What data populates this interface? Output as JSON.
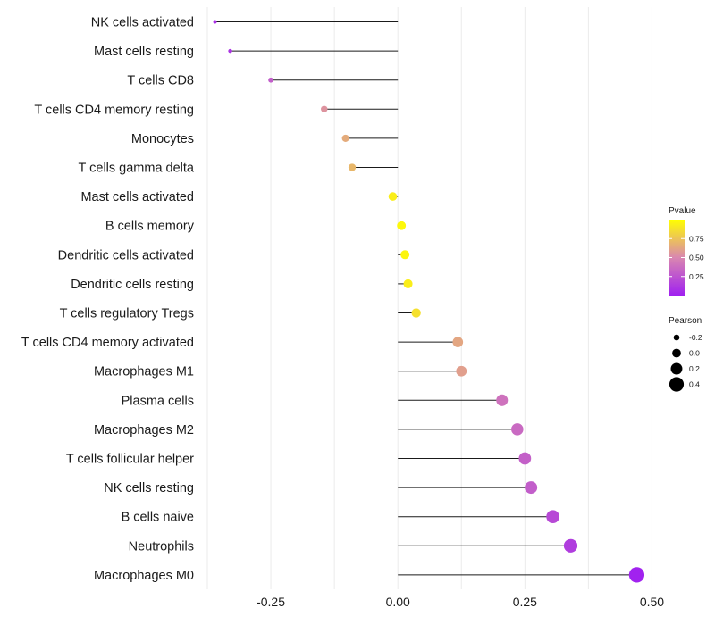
{
  "chart_data": {
    "type": "lollipop",
    "title": "",
    "xlabel": "",
    "ylabel": "",
    "xlim": [
      -0.375,
      0.515
    ],
    "x_ticks": [
      {
        "value": -0.25,
        "label": "-0.25"
      },
      {
        "value": 0.0,
        "label": "0.00"
      },
      {
        "value": 0.25,
        "label": "0.25"
      },
      {
        "value": 0.5,
        "label": "0.50"
      }
    ],
    "baseline": 0,
    "grid": "vertical",
    "categories": [
      "NK cells activated",
      "Mast cells resting",
      "T cells CD8",
      "T cells CD4 memory resting",
      "Monocytes",
      "T cells gamma delta",
      "Mast cells activated",
      "B cells memory",
      "Dendritic cells activated",
      "Dendritic cells resting",
      "T cells regulatory  Tregs ",
      "T cells CD4 memory activated",
      "Macrophages M1",
      "Plasma cells",
      "Macrophages M2",
      "T cells follicular helper",
      "NK cells resting",
      "B cells naive",
      "Neutrophils",
      "Macrophages M0"
    ],
    "pearson": [
      -0.36,
      -0.33,
      -0.25,
      -0.145,
      -0.103,
      -0.09,
      -0.01,
      0.007,
      0.014,
      0.02,
      0.036,
      0.118,
      0.125,
      0.205,
      0.235,
      0.25,
      0.262,
      0.305,
      0.34,
      0.47
    ],
    "pvalue": [
      0.08,
      0.1,
      0.3,
      0.55,
      0.65,
      0.7,
      0.93,
      0.97,
      0.96,
      0.93,
      0.87,
      0.63,
      0.6,
      0.4,
      0.36,
      0.31,
      0.3,
      0.2,
      0.14,
      0.01
    ],
    "legend_color": {
      "title": "Pvalue",
      "low_color": "#a020f0",
      "mid_color": "#d987b0",
      "high_color": "#ffff00",
      "domain": [
        0.0,
        1.0
      ],
      "ticks": [
        {
          "value": 0.75,
          "label": "0.75"
        },
        {
          "value": 0.5,
          "label": "0.50"
        },
        {
          "value": 0.25,
          "label": "0.25"
        }
      ]
    },
    "legend_size": {
      "title": "Pearson",
      "entries": [
        {
          "value": -0.2,
          "label": "-0.2"
        },
        {
          "value": 0.0,
          "label": "0.0"
        },
        {
          "value": 0.2,
          "label": "0.2"
        },
        {
          "value": 0.4,
          "label": "0.4"
        }
      ]
    },
    "legend_position": "right",
    "colors": {
      "stem": "#1a1a1a",
      "grid": "#ebebeb",
      "legend_point": "#000000"
    }
  }
}
